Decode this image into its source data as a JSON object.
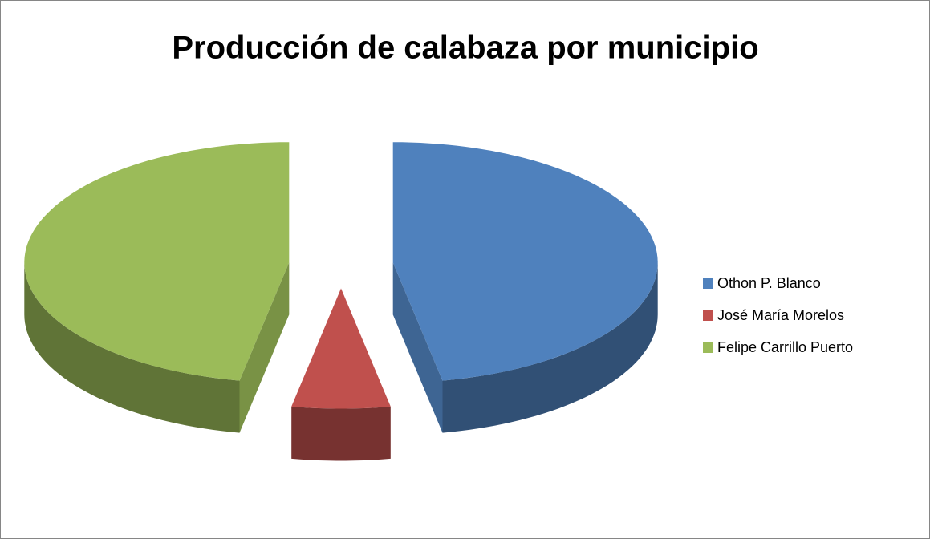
{
  "chart_data": {
    "type": "pie",
    "title": "Producción de calabaza por municipio",
    "categories": [
      "Othon P. Blanco",
      "José María Morelos",
      "Felipe Carrillo Puerto"
    ],
    "values": [
      47,
      6,
      47
    ],
    "colors": [
      "#4f81bd",
      "#c0504d",
      "#9bbb59"
    ],
    "legend": "right",
    "exploded": true,
    "three_d": true
  }
}
